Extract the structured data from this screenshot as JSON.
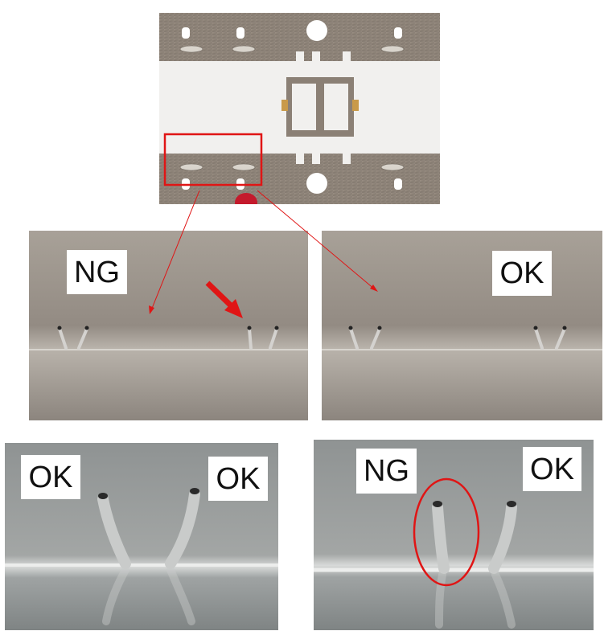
{
  "labels": {
    "mid_left": "NG",
    "mid_right": "OK",
    "bottom_left_a": "OK",
    "bottom_left_b": "OK",
    "bottom_right_a": "NG",
    "bottom_right_b": "OK"
  },
  "colors": {
    "annotation": "#e01515",
    "metal_plate": "#8f8478",
    "white_pad": "#f1f0ee",
    "background": "#ffffff"
  }
}
